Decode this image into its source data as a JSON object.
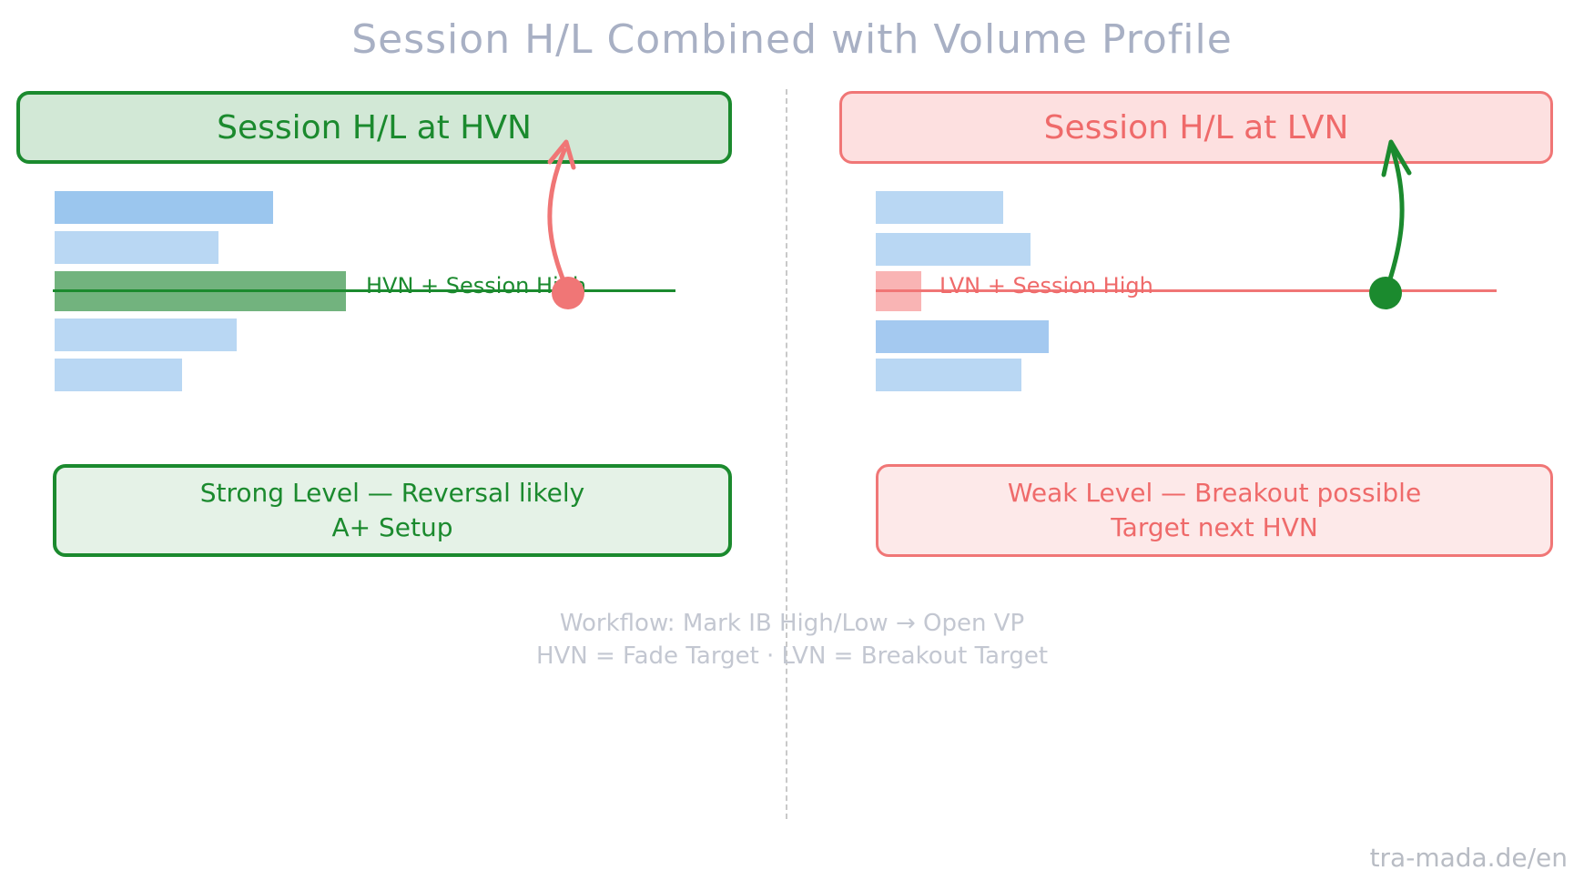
{
  "title": "Session H/L Combined with Volume Profile",
  "left": {
    "header": "Session H/L at HVN",
    "level_label": "HVN + Session High",
    "result_line1": "Strong Level — Reversal likely",
    "result_line2": "A+ Setup",
    "accent_color": "#1b8a2e",
    "highlight_bar_color": "#72b37e"
  },
  "right": {
    "header": "Session H/L at LVN",
    "level_label": "LVN + Session High",
    "result_line1": "Weak Level — Breakout possible",
    "result_line2": "Target next HVN",
    "accent_color": "#ef6a6a",
    "highlight_bar_color": "#f9b4b4"
  },
  "footer": {
    "line1": "Workflow: Mark IB High/Low → Open VP",
    "line2": "HVN = Fade Target  ·  LVN = Breakout Target"
  },
  "watermark": "tra-mada.de/en"
}
